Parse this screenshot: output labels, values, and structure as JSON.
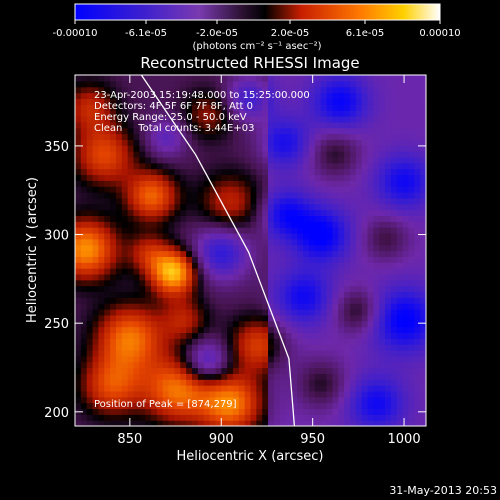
{
  "chart_data": {
    "type": "heatmap",
    "title": "Reconstructed RHESSI Image",
    "xlabel": "Heliocentric X (arcsec)",
    "ylabel": "Heliocentric Y (arcsec)",
    "xlim": [
      820,
      1012
    ],
    "ylim": [
      192,
      390
    ],
    "xticks": [
      850,
      900,
      950,
      1000
    ],
    "yticks": [
      200,
      250,
      300,
      350
    ],
    "colorbar": {
      "range": [
        -0.0001,
        0.0001
      ],
      "tick_labels": [
        "-0.00010",
        "-6.1e-05",
        "-2.0e-05",
        "2.0e-05",
        "6.1e-05",
        "0.00010"
      ],
      "unit_label": "(photons cm⁻² s⁻¹ asec⁻²)"
    },
    "info_lines": [
      "23-Apr-2003 15:19:48.000 to 15:25:00.000",
      "Detectors: 4F 5F 6F 7F 8F, Att 0",
      "Energy Range: 25.0 - 50.0 keV",
      "Clean     Total counts: 3.44E+03"
    ],
    "peak_label": "Position of Peak = [874,279]",
    "peak": [
      874,
      279
    ],
    "limb_line": [
      [
        853,
        395
      ],
      [
        886,
        345
      ],
      [
        915,
        290
      ],
      [
        937,
        230
      ],
      [
        940,
        192
      ]
    ],
    "blobs": [
      [
        874,
        279,
        1.0,
        9
      ],
      [
        826,
        292,
        0.85,
        12
      ],
      [
        850,
        242,
        0.75,
        13
      ],
      [
        836,
        345,
        0.6,
        12
      ],
      [
        862,
        322,
        0.7,
        10
      ],
      [
        876,
        213,
        0.75,
        13
      ],
      [
        905,
        205,
        0.8,
        12
      ],
      [
        920,
        238,
        0.55,
        11
      ],
      [
        840,
        215,
        0.6,
        12
      ],
      [
        905,
        318,
        0.45,
        12
      ],
      [
        893,
        368,
        0.35,
        10
      ],
      [
        962,
        346,
        0.35,
        10
      ],
      [
        975,
        257,
        0.4,
        9
      ],
      [
        955,
        216,
        0.35,
        10
      ],
      [
        990,
        298,
        0.3,
        9
      ],
      [
        880,
        252,
        0.4,
        9
      ],
      [
        828,
        372,
        0.45,
        10
      ],
      [
        860,
        290,
        0.4,
        8
      ],
      [
        892,
        228,
        -0.55,
        9
      ],
      [
        900,
        290,
        -0.6,
        11
      ],
      [
        935,
        312,
        -0.5,
        10
      ],
      [
        935,
        352,
        -0.45,
        10
      ],
      [
        965,
        375,
        -0.55,
        11
      ],
      [
        955,
        300,
        -0.6,
        11
      ],
      [
        1000,
        330,
        -0.5,
        11
      ],
      [
        1000,
        252,
        -0.6,
        13
      ],
      [
        985,
        205,
        -0.5,
        11
      ],
      [
        945,
        265,
        -0.5,
        11
      ],
      [
        915,
        377,
        -0.5,
        9
      ],
      [
        870,
        355,
        -0.35,
        8
      ]
    ]
  }
}
